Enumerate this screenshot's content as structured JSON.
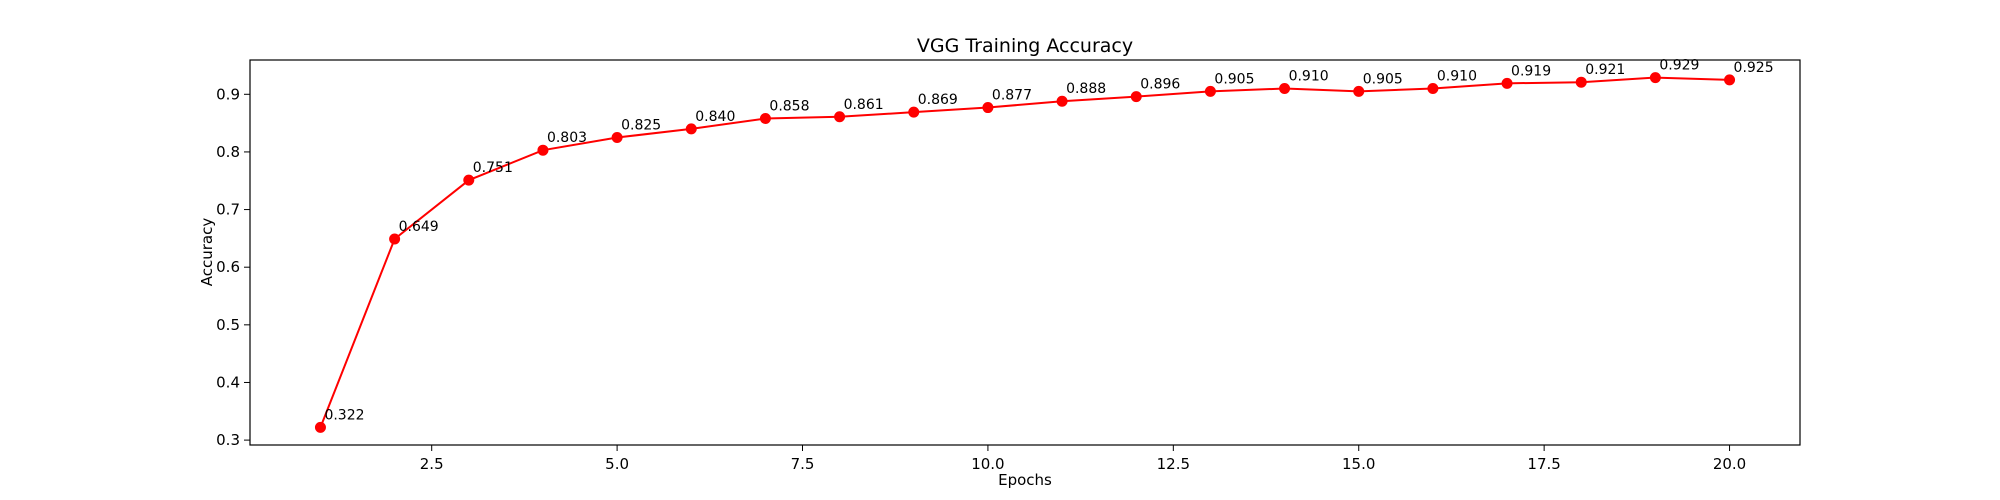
{
  "chart_data": {
    "type": "line",
    "title": "VGG Training Accuracy",
    "xlabel": "Epochs",
    "ylabel": "Accuracy",
    "x": [
      1,
      2,
      3,
      4,
      5,
      6,
      7,
      8,
      9,
      10,
      11,
      12,
      13,
      14,
      15,
      16,
      17,
      18,
      19,
      20
    ],
    "series": [
      {
        "values": [
          0.322,
          0.649,
          0.751,
          0.803,
          0.825,
          0.84,
          0.858,
          0.861,
          0.869,
          0.877,
          0.888,
          0.896,
          0.905,
          0.91,
          0.905,
          0.91,
          0.919,
          0.921,
          0.929,
          0.925
        ],
        "color": "#ff0000",
        "marker": "circle"
      }
    ],
    "data_labels": [
      "0.322",
      "0.649",
      "0.751",
      "0.803",
      "0.825",
      "0.840",
      "0.858",
      "0.861",
      "0.869",
      "0.877",
      "0.888",
      "0.896",
      "0.905",
      "0.910",
      "0.905",
      "0.910",
      "0.919",
      "0.921",
      "0.929",
      "0.925"
    ],
    "xlim": [
      0.05,
      20.95
    ],
    "ylim": [
      0.2915,
      0.9595
    ],
    "x_ticks": [
      2.5,
      5.0,
      7.5,
      10.0,
      12.5,
      15.0,
      17.5,
      20.0
    ],
    "x_tick_labels": [
      "2.5",
      "5.0",
      "7.5",
      "10.0",
      "12.5",
      "15.0",
      "17.5",
      "20.0"
    ],
    "y_ticks": [
      0.3,
      0.4,
      0.5,
      0.6,
      0.7,
      0.8,
      0.9
    ],
    "y_tick_labels": [
      "0.3",
      "0.4",
      "0.5",
      "0.6",
      "0.7",
      "0.8",
      "0.9"
    ],
    "grid": false,
    "legend": "none"
  }
}
